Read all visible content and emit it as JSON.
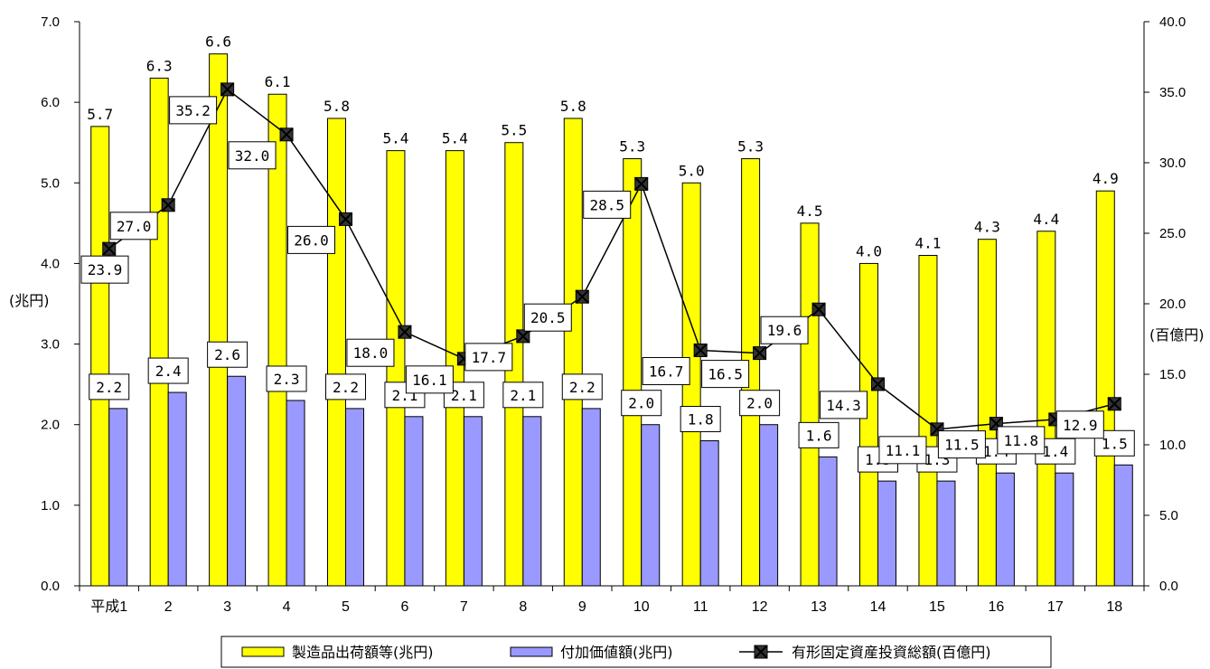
{
  "chart_data": {
    "type": "bar",
    "categories": [
      "平成1",
      "2",
      "3",
      "4",
      "5",
      "6",
      "7",
      "8",
      "9",
      "10",
      "11",
      "12",
      "13",
      "14",
      "15",
      "16",
      "17",
      "18"
    ],
    "series": [
      {
        "name": "製造品出荷額等(兆円)",
        "type": "bar",
        "axis": "left",
        "color": "#ffff00",
        "values": [
          5.7,
          6.3,
          6.6,
          6.1,
          5.8,
          5.4,
          5.4,
          5.5,
          5.8,
          5.3,
          5.0,
          5.3,
          4.5,
          4.0,
          4.1,
          4.3,
          4.4,
          4.9
        ],
        "labels": [
          "5.7",
          "6.3",
          "6.6",
          "6.1",
          "5.8",
          "5.4",
          "5.4",
          "5.5",
          "5.8",
          "5.3",
          "5.0",
          "5.3",
          "4.5",
          "4.0",
          "4.1",
          "4.3",
          "4.4",
          "4.9"
        ]
      },
      {
        "name": "付加価値額(兆円)",
        "type": "bar",
        "axis": "left",
        "color": "#9999ff",
        "values": [
          2.2,
          2.4,
          2.6,
          2.3,
          2.2,
          2.1,
          2.1,
          2.1,
          2.2,
          2.0,
          1.8,
          2.0,
          1.6,
          1.3,
          1.3,
          1.4,
          1.4,
          1.5
        ],
        "labels": [
          "2.2",
          "2.4",
          "2.6",
          "2.3",
          "2.2",
          "2.1",
          "2.1",
          "2.1",
          "2.2",
          "2.0",
          "1.8",
          "2.0",
          "1.6",
          "1.3",
          "1.3",
          "1.4",
          "1.4",
          "1.5"
        ]
      },
      {
        "name": "有形固定資産投資総額(百億円)",
        "type": "line",
        "axis": "right",
        "color": "#000000",
        "values": [
          23.9,
          27.0,
          35.2,
          32.0,
          26.0,
          18.0,
          16.1,
          17.7,
          20.5,
          28.5,
          16.7,
          16.5,
          19.6,
          14.3,
          11.1,
          11.5,
          11.8,
          12.9
        ],
        "labels": [
          "23.9",
          "27.0",
          "35.2",
          "32.0",
          "26.0",
          "18.0",
          "16.1",
          "17.7",
          "20.5",
          "28.5",
          "16.7",
          "16.5",
          "19.6",
          "14.3",
          "11.1",
          "11.5",
          "11.8",
          "12.9"
        ]
      }
    ],
    "y_left": {
      "label": "(兆円)",
      "ylim": [
        0,
        7
      ],
      "ticks": [
        "0.0",
        "1.0",
        "2.0",
        "3.0",
        "4.0",
        "5.0",
        "6.0",
        "7.0"
      ]
    },
    "y_right": {
      "label": "(百億円)",
      "ylim": [
        0,
        40
      ],
      "ticks": [
        "0.0",
        "5.0",
        "10.0",
        "15.0",
        "20.0",
        "25.0",
        "30.0",
        "35.0",
        "40.0"
      ]
    },
    "legend": "bottom",
    "grid": false
  }
}
